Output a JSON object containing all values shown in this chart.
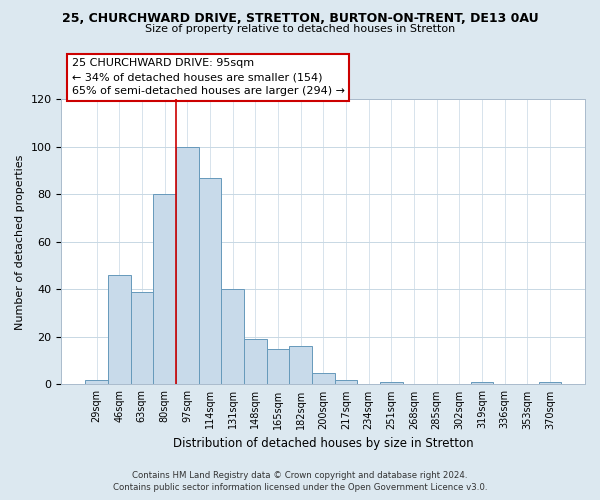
{
  "title": "25, CHURCHWARD DRIVE, STRETTON, BURTON-ON-TRENT, DE13 0AU",
  "subtitle": "Size of property relative to detached houses in Stretton",
  "xlabel": "Distribution of detached houses by size in Stretton",
  "ylabel": "Number of detached properties",
  "bin_labels": [
    "29sqm",
    "46sqm",
    "63sqm",
    "80sqm",
    "97sqm",
    "114sqm",
    "131sqm",
    "148sqm",
    "165sqm",
    "182sqm",
    "200sqm",
    "217sqm",
    "234sqm",
    "251sqm",
    "268sqm",
    "285sqm",
    "302sqm",
    "319sqm",
    "336sqm",
    "353sqm",
    "370sqm"
  ],
  "bar_values": [
    2,
    46,
    39,
    80,
    100,
    87,
    40,
    19,
    15,
    16,
    5,
    2,
    0,
    1,
    0,
    0,
    0,
    1,
    0,
    0,
    1
  ],
  "bar_color": "#c8daea",
  "bar_edge_color": "#6699bb",
  "highlight_bar_index": 4,
  "highlight_line_color": "#cc0000",
  "ylim": [
    0,
    120
  ],
  "yticks": [
    0,
    20,
    40,
    60,
    80,
    100,
    120
  ],
  "annotation_title": "25 CHURCHWARD DRIVE: 95sqm",
  "annotation_line1": "← 34% of detached houses are smaller (154)",
  "annotation_line2": "65% of semi-detached houses are larger (294) →",
  "annotation_box_color": "#ffffff",
  "annotation_box_edge": "#cc0000",
  "footer_line1": "Contains HM Land Registry data © Crown copyright and database right 2024.",
  "footer_line2": "Contains public sector information licensed under the Open Government Licence v3.0.",
  "background_color": "#dce8f0",
  "plot_background": "#ffffff",
  "grid_color": "#c8d8e4",
  "spine_color": "#aabbcc"
}
